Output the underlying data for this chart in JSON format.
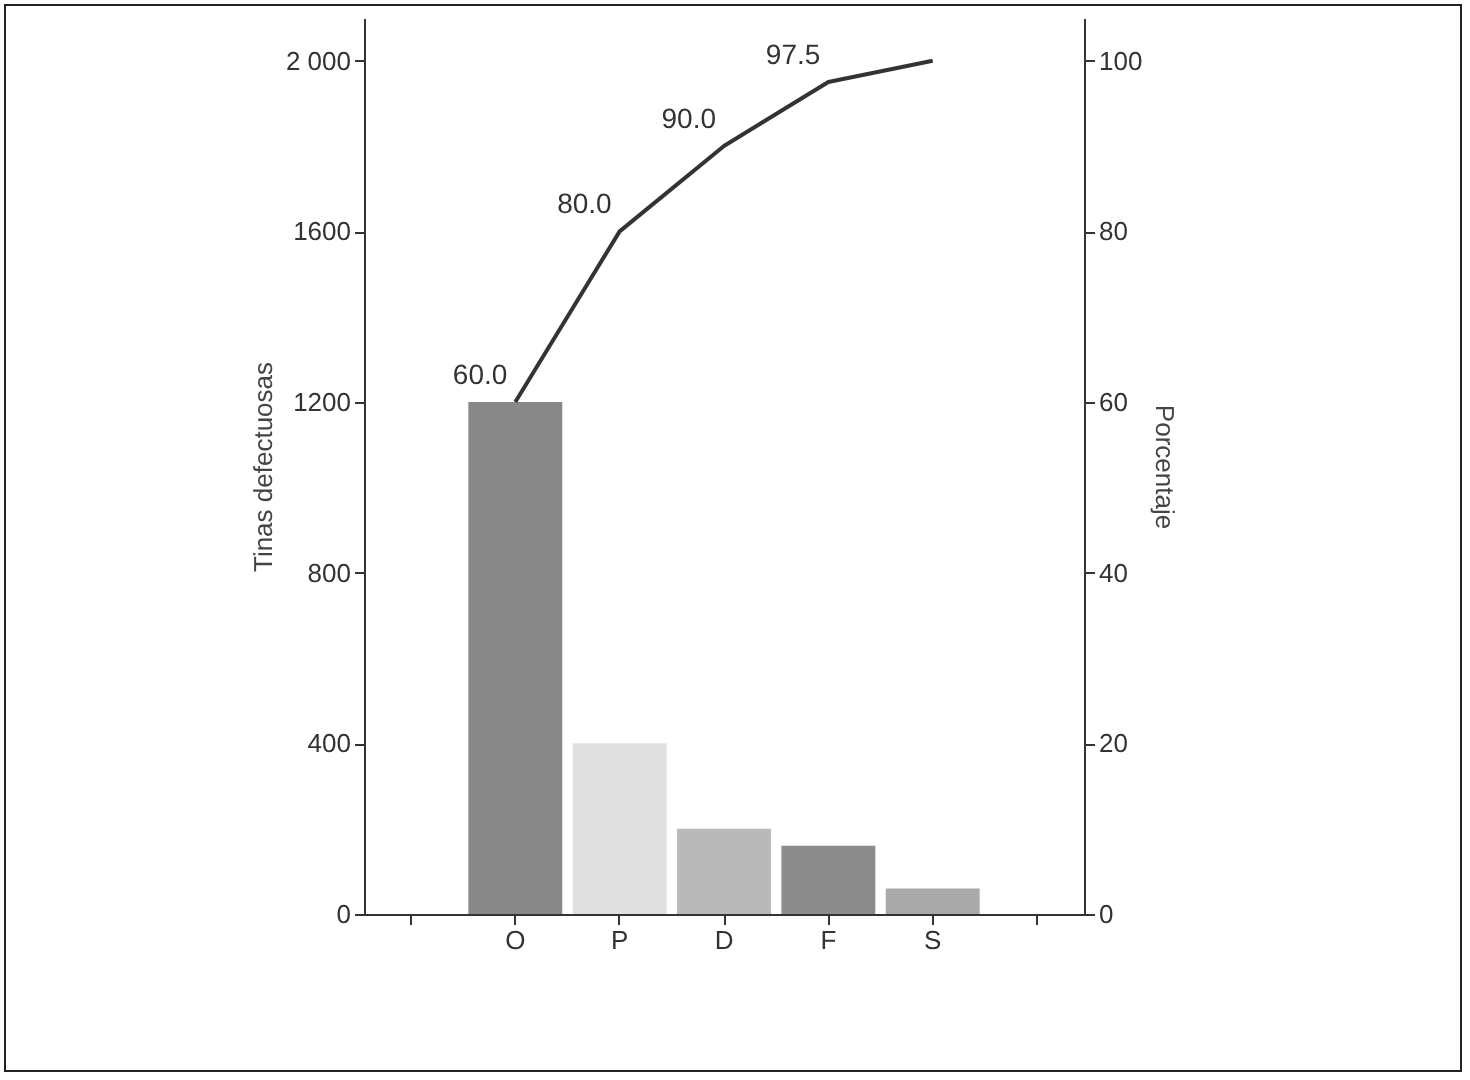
{
  "chart_data": {
    "type": "bar",
    "categories": [
      null,
      "O",
      "P",
      "D",
      "F",
      "S",
      null
    ],
    "xlabel": null,
    "ylabel": "Tinas defectuosas",
    "y2label": "Porcentaje",
    "ylim": [
      0,
      2100
    ],
    "yticks": [
      0,
      400,
      800,
      1200,
      1600,
      {
        "value": 2000,
        "label": "2 000"
      }
    ],
    "y2lim": [
      0,
      105
    ],
    "y2ticks": [
      0,
      20,
      40,
      60,
      80,
      100
    ],
    "grid": false,
    "legend": false,
    "series": [
      {
        "values": [
          null,
          1200,
          400,
          200,
          160,
          60,
          null
        ],
        "colors": [
          "#888888",
          "#888888",
          "#e0e0e0",
          "#b9b9b9",
          "#8c8c8c",
          "#a9a9a9",
          "#888888"
        ]
      },
      {
        "type": "line",
        "axis": "y2",
        "color": "#333333",
        "values": [
          null,
          60,
          80,
          90,
          97.5,
          100,
          null
        ],
        "value_labels": [
          null,
          "60.0",
          "80.0",
          "90.0",
          "97.5",
          null,
          null
        ]
      }
    ]
  }
}
